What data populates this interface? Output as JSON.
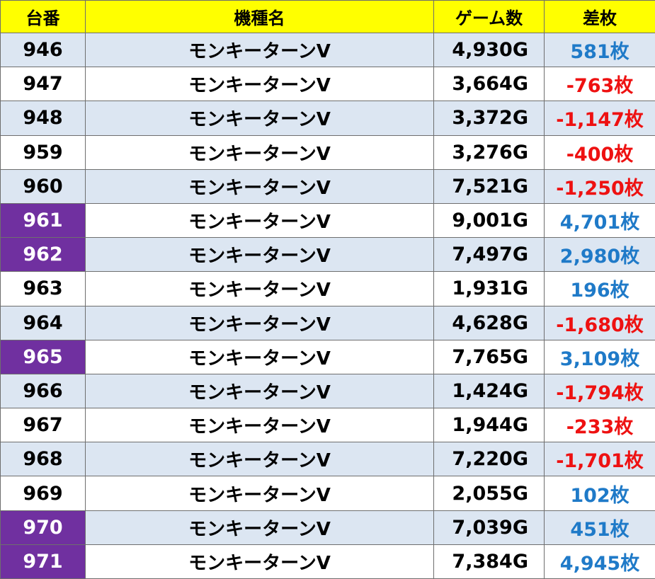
{
  "header": {
    "unit": "台番",
    "machine": "機種名",
    "games": "ゲーム数",
    "diff": "差枚"
  },
  "colors": {
    "header_bg": "#ffff00",
    "highlight": "#7030a0",
    "stripe": "#dce6f2",
    "positive": "#1f7ac8",
    "negative": "#ee1111"
  },
  "rows": [
    {
      "unit": "946",
      "machine": "モンキーターンV",
      "games": "4,930G",
      "diff": "581枚",
      "highlight": false
    },
    {
      "unit": "947",
      "machine": "モンキーターンV",
      "games": "3,664G",
      "diff": "-763枚",
      "highlight": false
    },
    {
      "unit": "948",
      "machine": "モンキーターンV",
      "games": "3,372G",
      "diff": "-1,147枚",
      "highlight": false
    },
    {
      "unit": "959",
      "machine": "モンキーターンV",
      "games": "3,276G",
      "diff": "-400枚",
      "highlight": false
    },
    {
      "unit": "960",
      "machine": "モンキーターンV",
      "games": "7,521G",
      "diff": "-1,250枚",
      "highlight": false
    },
    {
      "unit": "961",
      "machine": "モンキーターンV",
      "games": "9,001G",
      "diff": "4,701枚",
      "highlight": true
    },
    {
      "unit": "962",
      "machine": "モンキーターンV",
      "games": "7,497G",
      "diff": "2,980枚",
      "highlight": true
    },
    {
      "unit": "963",
      "machine": "モンキーターンV",
      "games": "1,931G",
      "diff": "196枚",
      "highlight": false
    },
    {
      "unit": "964",
      "machine": "モンキーターンV",
      "games": "4,628G",
      "diff": "-1,680枚",
      "highlight": false
    },
    {
      "unit": "965",
      "machine": "モンキーターンV",
      "games": "7,765G",
      "diff": "3,109枚",
      "highlight": true
    },
    {
      "unit": "966",
      "machine": "モンキーターンV",
      "games": "1,424G",
      "diff": "-1,794枚",
      "highlight": false
    },
    {
      "unit": "967",
      "machine": "モンキーターンV",
      "games": "1,944G",
      "diff": "-233枚",
      "highlight": false
    },
    {
      "unit": "968",
      "machine": "モンキーターンV",
      "games": "7,220G",
      "diff": "-1,701枚",
      "highlight": false
    },
    {
      "unit": "969",
      "machine": "モンキーターンV",
      "games": "2,055G",
      "diff": "102枚",
      "highlight": false
    },
    {
      "unit": "970",
      "machine": "モンキーターンV",
      "games": "7,039G",
      "diff": "451枚",
      "highlight": true
    },
    {
      "unit": "971",
      "machine": "モンキーターンV",
      "games": "7,384G",
      "diff": "4,945枚",
      "highlight": true
    }
  ]
}
